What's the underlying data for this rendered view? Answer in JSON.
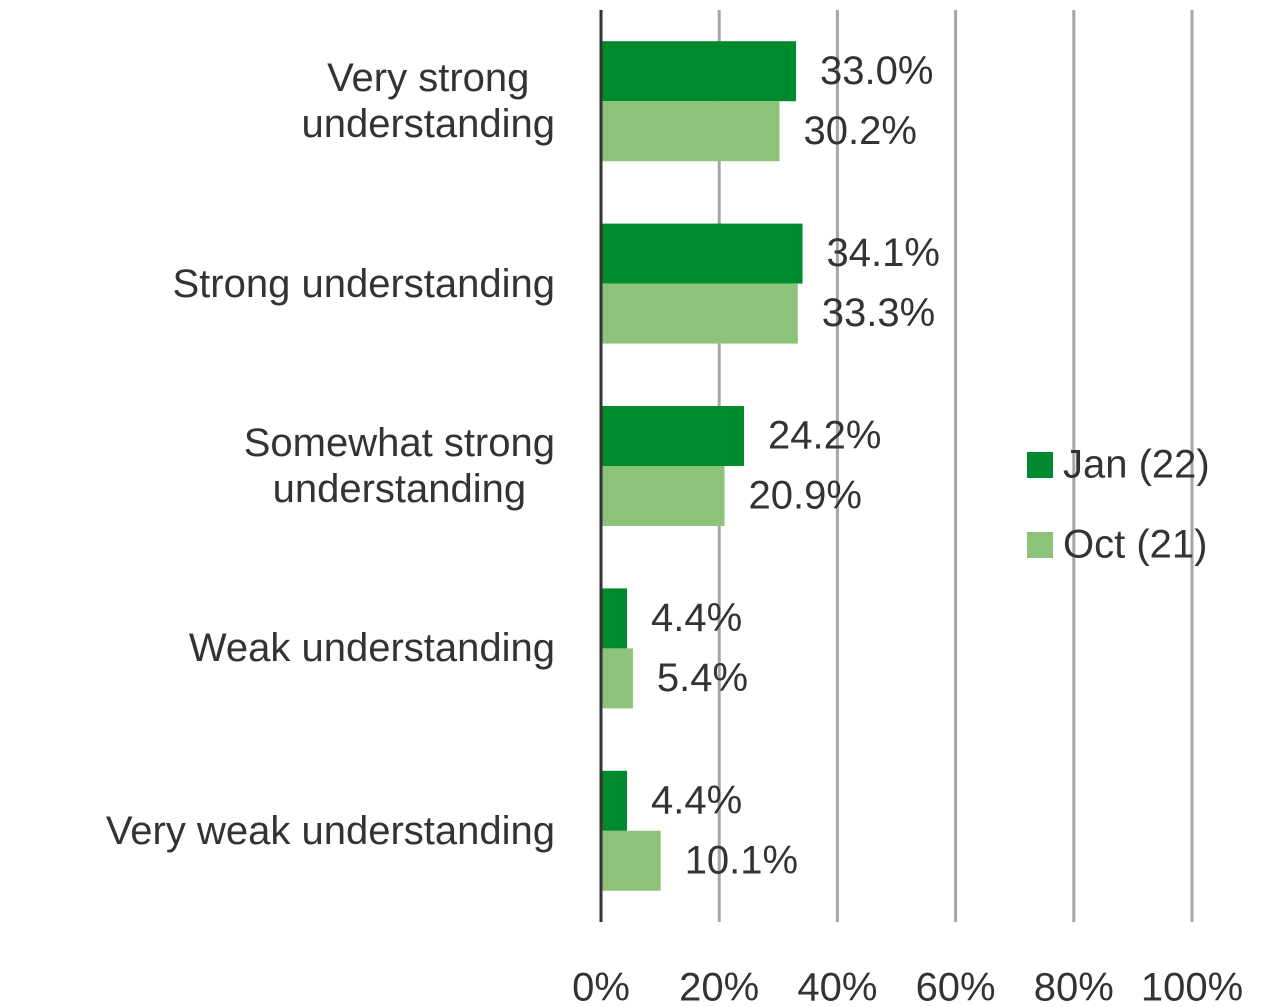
{
  "chart_data": {
    "type": "hbar",
    "categories": [
      "Very strong\nunderstanding",
      "Strong understanding",
      "Somewhat strong\nunderstanding",
      "Weak understanding",
      "Very weak understanding"
    ],
    "series": [
      {
        "name": "Jan (22)",
        "color": "#008a2e",
        "values": [
          33.0,
          34.1,
          24.2,
          4.4,
          4.4
        ],
        "value_labels": [
          "33.0%",
          "34.1%",
          "24.2%",
          "4.4%",
          "4.4%"
        ]
      },
      {
        "name": "Oct (21)",
        "color": "#8cc27a",
        "values": [
          30.2,
          33.3,
          20.9,
          5.4,
          10.1
        ],
        "value_labels": [
          "30.2%",
          "33.3%",
          "20.9%",
          "5.4%",
          "10.1%"
        ]
      }
    ],
    "xlim": [
      0,
      100
    ],
    "xticks": [
      {
        "value": 0,
        "label": "0%"
      },
      {
        "value": 20,
        "label": "20%"
      },
      {
        "value": 40,
        "label": "40%"
      },
      {
        "value": 60,
        "label": "60%"
      },
      {
        "value": 80,
        "label": "80%"
      },
      {
        "value": 100,
        "label": "100%"
      }
    ],
    "grid": true,
    "legend": "right"
  }
}
